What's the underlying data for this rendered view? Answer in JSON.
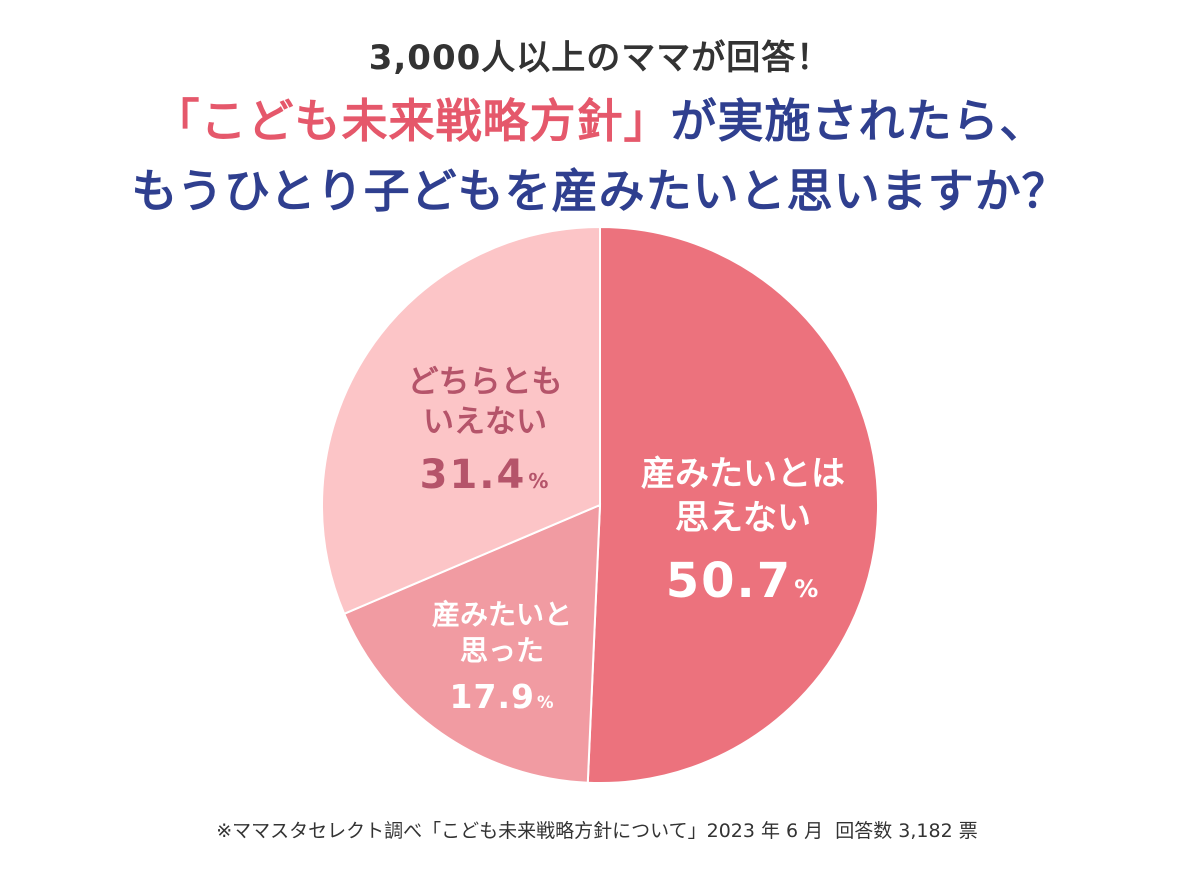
{
  "header": {
    "kicker": "3,000人以上のママが回答！",
    "title_highlight": "「こども未来戦略方針」",
    "title_line1_rest": "が実施されたら、",
    "title_line2": "もうひとり子どもを産みたいと思いますか？"
  },
  "chart_data": {
    "type": "pie",
    "title": "「こども未来戦略方針」が実施されたら、もうひとり子どもを産みたいと思いますか？",
    "unit": "%",
    "slices": [
      {
        "label_line1": "産みたいとは",
        "label_line2": "思えない",
        "value": 50.7,
        "value_text": "50.7",
        "color": "#ec727d"
      },
      {
        "label_line1": "産みたいと",
        "label_line2": "思った",
        "value": 17.9,
        "value_text": "17.9",
        "color": "#f19ba2"
      },
      {
        "label_line1": "どちらとも",
        "label_line2": "いえない",
        "value": 31.4,
        "value_text": "31.4",
        "color": "#fcc5c7"
      }
    ]
  },
  "footnote": {
    "source": "※ママスタセレクト調べ「こども未来戦略方針について」2023 年 6 月",
    "responses": "回答数 3,182 票"
  },
  "colors": {
    "title_blue": "#2f3f8f",
    "title_pink": "#e5586b",
    "label_dark_pink": "#b5546a"
  }
}
